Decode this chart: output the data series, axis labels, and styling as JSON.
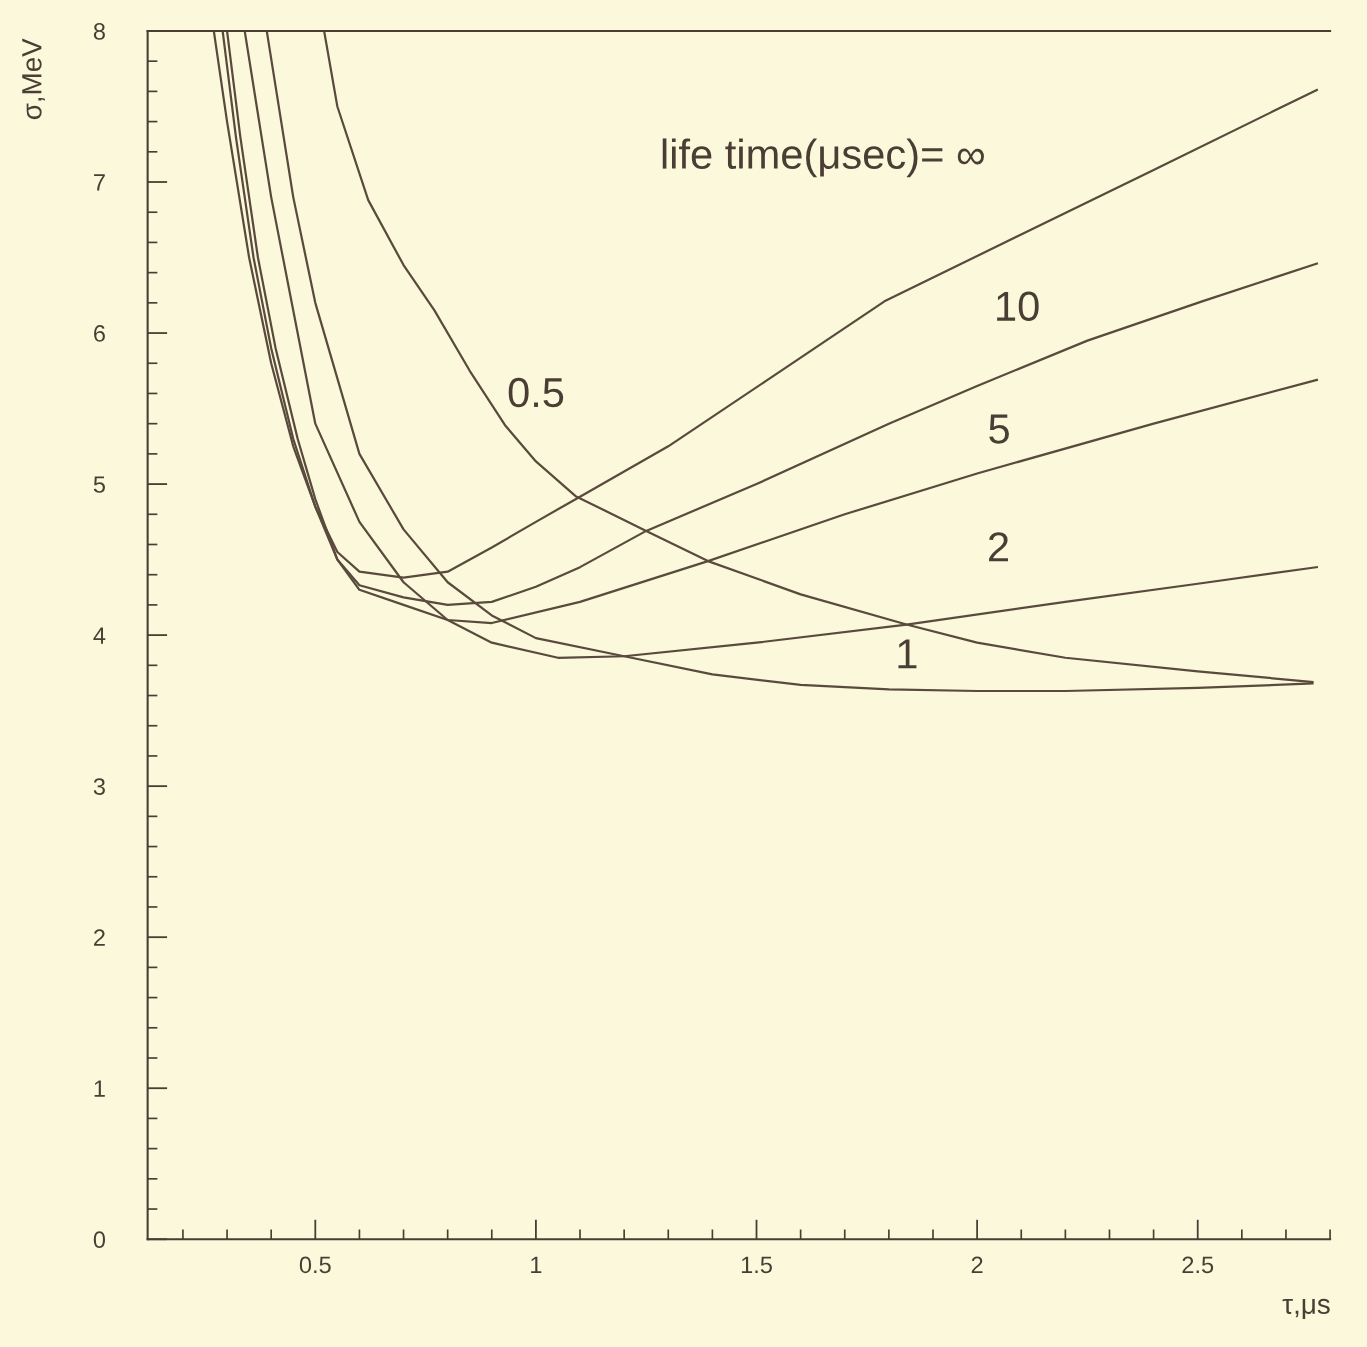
{
  "chart_data": {
    "type": "line",
    "xlabel": "τ,μs",
    "ylabel": "σ,MeV",
    "xlim": [
      0.12,
      2.8
    ],
    "ylim": [
      0,
      8
    ],
    "xticks": [
      {
        "value": 0.2,
        "label": null
      },
      {
        "value": 0.3,
        "label": null
      },
      {
        "value": 0.4,
        "label": null
      },
      0.5,
      {
        "value": 0.6,
        "label": null
      },
      {
        "value": 0.7,
        "label": null
      },
      {
        "value": 0.8,
        "label": null
      },
      {
        "value": 0.9,
        "label": null
      },
      1,
      {
        "value": 1.1,
        "label": null
      },
      {
        "value": 1.2,
        "label": null
      },
      {
        "value": 1.3,
        "label": null
      },
      {
        "value": 1.4,
        "label": null
      },
      1.5,
      {
        "value": 1.6,
        "label": null
      },
      {
        "value": 1.7,
        "label": null
      },
      {
        "value": 1.8,
        "label": null
      },
      {
        "value": 1.9,
        "label": null
      },
      2,
      {
        "value": 2.1,
        "label": null
      },
      {
        "value": 2.2,
        "label": null
      },
      {
        "value": 2.3,
        "label": null
      },
      {
        "value": 2.4,
        "label": null
      },
      2.5,
      {
        "value": 2.6,
        "label": null
      },
      {
        "value": 2.7,
        "label": null
      },
      {
        "value": 2.8,
        "label": null
      }
    ],
    "yticks": [
      0,
      {
        "value": 0.2,
        "label": null
      },
      {
        "value": 0.4,
        "label": null
      },
      {
        "value": 0.6,
        "label": null
      },
      {
        "value": 0.8,
        "label": null
      },
      1,
      {
        "value": 1.2,
        "label": null
      },
      {
        "value": 1.4,
        "label": null
      },
      {
        "value": 1.6,
        "label": null
      },
      {
        "value": 1.8,
        "label": null
      },
      2,
      {
        "value": 2.2,
        "label": null
      },
      {
        "value": 2.4,
        "label": null
      },
      {
        "value": 2.6,
        "label": null
      },
      {
        "value": 2.8,
        "label": null
      },
      3,
      {
        "value": 3.2,
        "label": null
      },
      {
        "value": 3.4,
        "label": null
      },
      {
        "value": 3.6,
        "label": null
      },
      {
        "value": 3.8,
        "label": null
      },
      4,
      {
        "value": 4.2,
        "label": null
      },
      {
        "value": 4.4,
        "label": null
      },
      {
        "value": 4.6,
        "label": null
      },
      {
        "value": 4.8,
        "label": null
      },
      5,
      {
        "value": 5.2,
        "label": null
      },
      {
        "value": 5.4,
        "label": null
      },
      {
        "value": 5.6,
        "label": null
      },
      {
        "value": 5.8,
        "label": null
      },
      6,
      {
        "value": 6.2,
        "label": null
      },
      {
        "value": 6.4,
        "label": null
      },
      {
        "value": 6.6,
        "label": null
      },
      {
        "value": 6.8,
        "label": null
      },
      7,
      {
        "value": 7.2,
        "label": null
      },
      {
        "value": 7.4,
        "label": null
      },
      {
        "value": 7.6,
        "label": null
      },
      {
        "value": 7.8,
        "label": null
      },
      8
    ],
    "grid": false,
    "marker": "none",
    "line_style": "solid",
    "series": [
      {
        "color": "#5a4a3c",
        "x": [
          0.27,
          0.3,
          0.35,
          0.4,
          0.45,
          0.5,
          0.55,
          0.6,
          0.7,
          0.8,
          0.9,
          1.0,
          1.09,
          1.3,
          1.52,
          1.79,
          2.0,
          2.4,
          2.77
        ],
        "values": [
          8,
          7.4,
          6.5,
          5.8,
          5.25,
          4.85,
          4.55,
          4.42,
          4.38,
          4.42,
          4.58,
          4.75,
          4.9,
          5.25,
          5.68,
          6.21,
          6.51,
          7.08,
          7.61
        ]
      },
      {
        "name": "10",
        "color": "#5a4a3c",
        "x": [
          0.29,
          0.32,
          0.36,
          0.4,
          0.45,
          0.5,
          0.55,
          0.6,
          0.7,
          0.8,
          0.9,
          1.0,
          1.1,
          1.25,
          1.5,
          1.8,
          2.0,
          2.25,
          2.51,
          2.77
        ],
        "values": [
          8,
          7.3,
          6.5,
          5.9,
          5.3,
          4.85,
          4.5,
          4.33,
          4.25,
          4.2,
          4.22,
          4.32,
          4.45,
          4.69,
          5.0,
          5.4,
          5.65,
          5.95,
          6.21,
          6.46
        ]
      },
      {
        "name": "5",
        "color": "#5a4a3c",
        "x": [
          0.3,
          0.33,
          0.37,
          0.41,
          0.46,
          0.5,
          0.55,
          0.6,
          0.7,
          0.8,
          0.9,
          1.1,
          1.39,
          1.7,
          2.0,
          2.4,
          2.77
        ],
        "values": [
          8,
          7.3,
          6.5,
          5.9,
          5.3,
          4.9,
          4.5,
          4.3,
          4.2,
          4.1,
          4.08,
          4.22,
          4.49,
          4.8,
          5.07,
          5.4,
          5.69
        ]
      },
      {
        "name": "2",
        "color": "#5a4a3c",
        "x": [
          0.34,
          0.4,
          0.5,
          0.6,
          0.7,
          0.8,
          0.9,
          1.05,
          1.2,
          1.5,
          1.84,
          2.2,
          2.5,
          2.77
        ],
        "values": [
          8,
          6.9,
          5.4,
          4.75,
          4.35,
          4.1,
          3.95,
          3.85,
          3.86,
          3.95,
          4.07,
          4.22,
          4.34,
          4.45
        ]
      },
      {
        "name": "1",
        "color": "#5a4a3c",
        "x": [
          0.39,
          0.45,
          0.5,
          0.6,
          0.7,
          0.8,
          0.9,
          1.0,
          1.2,
          1.4,
          1.6,
          1.8,
          2.0,
          2.2,
          2.5,
          2.76
        ],
        "values": [
          8,
          6.9,
          6.2,
          5.2,
          4.7,
          4.35,
          4.13,
          3.98,
          3.86,
          3.74,
          3.67,
          3.64,
          3.63,
          3.63,
          3.65,
          3.68
        ]
      },
      {
        "name": "0.5",
        "color": "#5a4a3c",
        "x": [
          0.52,
          0.55,
          0.62,
          0.7,
          0.77,
          0.85,
          0.93,
          1.0,
          1.09,
          1.25,
          1.39,
          1.6,
          1.84,
          2.0,
          2.2,
          2.5,
          2.76
        ],
        "values": [
          8,
          7.5,
          6.88,
          6.45,
          6.15,
          5.75,
          5.39,
          5.15,
          4.92,
          4.69,
          4.49,
          4.27,
          4.07,
          3.95,
          3.85,
          3.76,
          3.69
        ]
      }
    ],
    "annotations": [
      "life time(μsec)= ∞"
    ]
  }
}
